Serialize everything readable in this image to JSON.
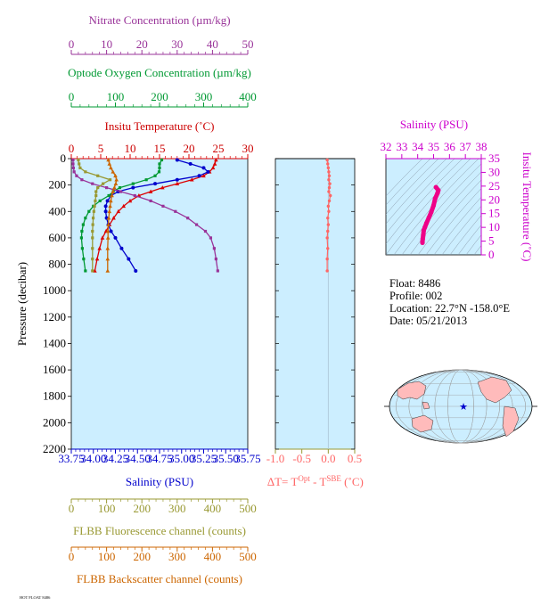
{
  "colors": {
    "nitrate": "#993399",
    "oxygen": "#009933",
    "temperature": "#dd0000",
    "salinity": "#0000cc",
    "fluorescence": "#999933",
    "backscatter": "#cc6600",
    "delta_t": "#ff6666",
    "magenta": "#cc00cc",
    "panel_bg": "#cceeff",
    "land": "#ffbbbb"
  },
  "float_info": {
    "float": "Float:  8486",
    "profile": "Profile:  002",
    "location": "Location:  22.7°N  -158.0°E",
    "date": "Date:  05/21/2013"
  },
  "footer_text": "HOT FLOAT 8486",
  "chart_data": [
    {
      "type": "line",
      "panel": "main-profile",
      "ylabel": "Pressure (decibar)",
      "ylim": [
        2200,
        0
      ],
      "yticks": [
        "0",
        "200",
        "400",
        "600",
        "800",
        "1000",
        "1200",
        "1400",
        "1600",
        "1800",
        "2000",
        "2200"
      ],
      "axes": {
        "nitrate": {
          "label": "Nitrate Concentration (µm/kg)",
          "lim": [
            0,
            50
          ],
          "ticks": [
            "0",
            "10",
            "20",
            "30",
            "40",
            "50"
          ]
        },
        "oxygen": {
          "label": "Optode Oxygen Concentration (µm/kg)",
          "lim": [
            0,
            400
          ],
          "ticks": [
            "0",
            "100",
            "200",
            "300",
            "400"
          ]
        },
        "temperature": {
          "label": "Insitu Temperature (˚C)",
          "lim": [
            0,
            30
          ],
          "ticks": [
            "0",
            "5",
            "10",
            "15",
            "20",
            "25",
            "30"
          ]
        },
        "salinity": {
          "label": "Salinity (PSU)",
          "lim": [
            33.75,
            35.75
          ],
          "ticks": [
            "33.75",
            "34.00",
            "34.25",
            "34.50",
            "34.75",
            "35.00",
            "35.25",
            "35.50",
            "35.75"
          ]
        },
        "fluorescence": {
          "label": "FLBB Fluorescence channel (counts)",
          "lim": [
            0,
            500
          ],
          "ticks": [
            "0",
            "100",
            "200",
            "300",
            "400",
            "500"
          ]
        },
        "backscatter": {
          "label": "FLBB Backscatter channel (counts)",
          "lim": [
            0,
            500
          ],
          "ticks": [
            "0",
            "100",
            "200",
            "300",
            "400",
            "500"
          ]
        }
      },
      "series": [
        {
          "key": "temperature",
          "name": "Insitu Temperature",
          "x": [
            24.6,
            24.4,
            24.1,
            23.5,
            22.5,
            20.5,
            18.0,
            15.5,
            13.5,
            11.5,
            10.0,
            8.9,
            8.0,
            7.2,
            6.5,
            5.9,
            5.3,
            4.8,
            4.4,
            4.0
          ],
          "y": [
            10,
            40,
            70,
            100,
            130,
            160,
            190,
            220,
            250,
            280,
            320,
            360,
            400,
            450,
            500,
            550,
            600,
            680,
            760,
            850
          ]
        },
        {
          "key": "salinity",
          "name": "Salinity",
          "x": [
            34.95,
            35.1,
            35.25,
            35.3,
            35.2,
            34.95,
            34.7,
            34.45,
            34.28,
            34.2,
            34.16,
            34.14,
            34.14,
            34.15,
            34.17,
            34.2,
            34.25,
            34.32,
            34.4,
            34.48
          ],
          "y": [
            10,
            40,
            70,
            100,
            130,
            160,
            190,
            220,
            250,
            280,
            320,
            360,
            400,
            450,
            500,
            550,
            600,
            680,
            760,
            850
          ]
        },
        {
          "key": "oxygen",
          "name": "Optode Oxygen Concentration",
          "x": [
            205,
            200,
            200,
            199,
            190,
            170,
            140,
            110,
            95,
            85,
            65,
            50,
            40,
            32,
            27,
            24,
            23,
            25,
            28,
            32
          ],
          "y": [
            10,
            40,
            70,
            100,
            130,
            160,
            190,
            220,
            250,
            280,
            320,
            360,
            400,
            450,
            500,
            550,
            600,
            680,
            760,
            850
          ]
        },
        {
          "key": "nitrate",
          "name": "Nitrate Concentration",
          "x": [
            0.5,
            0.5,
            0.6,
            0.8,
            1.5,
            3.0,
            6.0,
            10.0,
            14.0,
            18.0,
            22.5,
            26.0,
            29.5,
            33.0,
            35.5,
            38.0,
            39.5,
            40.5,
            41.0,
            41.5
          ],
          "y": [
            10,
            40,
            70,
            100,
            130,
            160,
            190,
            220,
            250,
            280,
            320,
            360,
            400,
            450,
            500,
            550,
            600,
            680,
            760,
            850
          ]
        },
        {
          "key": "fluorescence",
          "name": "FLBB Fluorescence",
          "x": [
            20,
            22,
            25,
            40,
            75,
            110,
            90,
            75,
            70,
            70,
            68,
            66,
            64,
            62,
            61,
            60,
            60,
            60,
            60,
            60
          ],
          "y": [
            10,
            40,
            70,
            100,
            130,
            160,
            190,
            220,
            250,
            280,
            320,
            360,
            400,
            450,
            500,
            550,
            600,
            680,
            760,
            850
          ]
        },
        {
          "key": "backscatter",
          "name": "FLBB Backscatter",
          "x": [
            105,
            108,
            112,
            118,
            125,
            128,
            126,
            122,
            118,
            115,
            112,
            110,
            108,
            106,
            105,
            104,
            104,
            103,
            103,
            103
          ],
          "y": [
            10,
            40,
            70,
            100,
            130,
            160,
            190,
            220,
            250,
            280,
            320,
            360,
            400,
            450,
            500,
            550,
            600,
            680,
            760,
            850
          ]
        }
      ]
    },
    {
      "type": "line",
      "panel": "delta-t",
      "xlabel_main": "∆T= T",
      "xlabel_sup1": "Opt",
      "xlabel_mid": " - T",
      "xlabel_sup2": "SBE",
      "xlabel_end": " (˚C)",
      "xlim": [
        -1.0,
        0.5
      ],
      "ylim": [
        2200,
        0
      ],
      "xticks": [
        "-1.0",
        "-0.5",
        "0.0",
        "0.5"
      ],
      "series": [
        {
          "name": "delta-t",
          "x": [
            -0.02,
            -0.01,
            0.0,
            0.01,
            0.02,
            0.01,
            0.03,
            0.02,
            0.01,
            0.04,
            0.02,
            0.0,
            0.01,
            -0.01,
            0.0,
            -0.01,
            -0.02,
            -0.01,
            -0.02,
            -0.02
          ],
          "y": [
            10,
            40,
            70,
            100,
            130,
            160,
            190,
            220,
            250,
            280,
            320,
            360,
            400,
            450,
            500,
            550,
            600,
            680,
            760,
            850
          ]
        }
      ]
    },
    {
      "type": "scatter",
      "panel": "ts-diagram",
      "title": "Salinity (PSU)",
      "ylabel": "Insitu Temperature (˚C)",
      "xlim": [
        32,
        38
      ],
      "ylim": [
        0,
        35
      ],
      "xticks": [
        "32",
        "33",
        "34",
        "35",
        "36",
        "37",
        "38"
      ],
      "yticks": [
        "0",
        "5",
        "10",
        "15",
        "20",
        "25",
        "30",
        "35"
      ],
      "series": [
        {
          "name": "T-S",
          "x": [
            35.15,
            35.3,
            35.25,
            35.1,
            35.0,
            34.85,
            34.7,
            34.55,
            34.45,
            34.38,
            34.35,
            34.32,
            34.3,
            34.3
          ],
          "y": [
            24.6,
            23.5,
            22.5,
            20.5,
            18.0,
            15.5,
            13.5,
            11.5,
            10.0,
            8.9,
            7.2,
            5.9,
            4.8,
            4.4
          ]
        }
      ]
    }
  ]
}
